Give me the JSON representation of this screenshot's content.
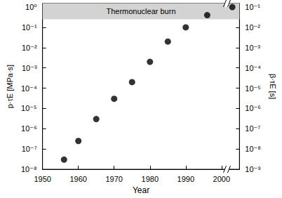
{
  "chart_data": {
    "type": "scatter",
    "x_label": "Year",
    "y_label": "p·τE [MPa·s]",
    "y2_label": "β·τE [s]",
    "x": [
      1956,
      1960,
      1965,
      1970,
      1975,
      1980,
      1985,
      1990,
      1996,
      2003
    ],
    "values": [
      3e-08,
      2.5e-07,
      3e-06,
      3e-05,
      0.0002,
      0.002,
      0.02,
      0.1,
      0.4,
      1.0
    ],
    "color": "#000000",
    "marker": "circle",
    "log": "y",
    "grid": false,
    "xlim": [
      1950,
      2005
    ],
    "xticks": [
      1950,
      1960,
      1970,
      1980,
      1990,
      2000
    ],
    "ylim": [
      1e-08,
      1.5
    ],
    "yticks": [
      {
        "value": 1e-08,
        "label": "10⁻⁸"
      },
      {
        "value": 1e-07,
        "label": "10⁻⁷"
      },
      {
        "value": 1e-06,
        "label": "10⁻⁶"
      },
      {
        "value": 1e-05,
        "label": "10⁻⁵"
      },
      {
        "value": 0.0001,
        "label": "10⁻⁴"
      },
      {
        "value": 0.001,
        "label": "10⁻³"
      },
      {
        "value": 0.01,
        "label": "10⁻²"
      },
      {
        "value": 0.1,
        "label": "10⁻¹"
      },
      {
        "value": 1,
        "label": "10⁰"
      }
    ],
    "y2lim": [
      1e-09,
      0.15
    ],
    "y2ticks": [
      {
        "value": 1e-09,
        "label": "10⁻⁹"
      },
      {
        "value": 1e-08,
        "label": "10⁻⁸"
      },
      {
        "value": 1e-07,
        "label": "10⁻⁷"
      },
      {
        "value": 1e-06,
        "label": "10⁻⁶"
      },
      {
        "value": 1e-05,
        "label": "10⁻⁵"
      },
      {
        "value": 0.0001,
        "label": "10⁻⁴"
      },
      {
        "value": 0.001,
        "label": "10⁻³"
      },
      {
        "value": 0.01,
        "label": "10⁻²"
      },
      {
        "value": 0.1,
        "label": "10⁻¹"
      }
    ],
    "annotations": [
      {
        "text": "Thermonuclear burn",
        "y_range": [
          0.25,
          1.5
        ],
        "color": "#d3d3d3"
      }
    ]
  }
}
